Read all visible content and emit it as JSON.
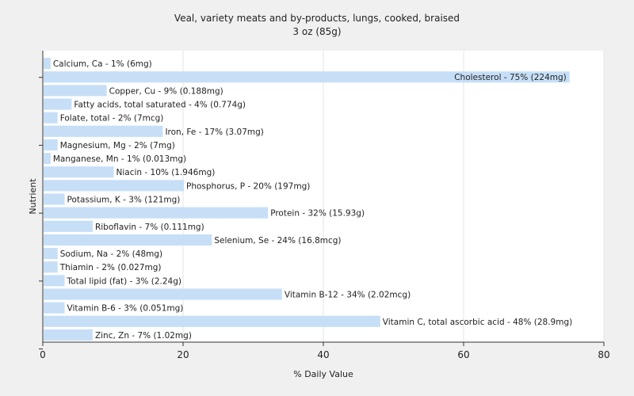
{
  "chart_data": {
    "type": "bar",
    "orientation": "horizontal",
    "title": "Veal, variety meats and by-products, lungs, cooked, braised",
    "subtitle": "3 oz (85g)",
    "xlabel": "% Daily Value",
    "ylabel": "Nutrient",
    "xlim": [
      0,
      80
    ],
    "xticks": [
      "0",
      "20",
      "40",
      "60",
      "80"
    ],
    "grid": true,
    "bar_color": "#c6dff7",
    "categories": [
      "Calcium, Ca",
      "Cholesterol",
      "Copper, Cu",
      "Fatty acids, total saturated",
      "Folate, total",
      "Iron, Fe",
      "Magnesium, Mg",
      "Manganese, Mn",
      "Niacin",
      "Phosphorus, P",
      "Potassium, K",
      "Protein",
      "Riboflavin",
      "Selenium, Se",
      "Sodium, Na",
      "Thiamin",
      "Total lipid (fat)",
      "Vitamin B-12",
      "Vitamin B-6",
      "Vitamin C, total ascorbic acid",
      "Zinc, Zn"
    ],
    "values": [
      1,
      75,
      9,
      4,
      2,
      17,
      2,
      1,
      10,
      20,
      3,
      32,
      7,
      24,
      2,
      2,
      3,
      34,
      3,
      48,
      7
    ],
    "labels": [
      "Calcium, Ca - 1% (6mg)",
      "Cholesterol - 75% (224mg)",
      "Copper, Cu - 9% (0.188mg)",
      "Fatty acids, total saturated - 4% (0.774g)",
      "Folate, total - 2% (7mcg)",
      "Iron, Fe - 17% (3.07mg)",
      "Magnesium, Mg - 2% (7mg)",
      "Manganese, Mn - 1% (0.013mg)",
      "Niacin - 10% (1.946mg)",
      "Phosphorus, P - 20% (197mg)",
      "Potassium, K - 3% (121mg)",
      "Protein - 32% (15.93g)",
      "Riboflavin - 7% (0.111mg)",
      "Selenium, Se - 24% (16.8mcg)",
      "Sodium, Na - 2% (48mg)",
      "Thiamin - 2% (0.027mg)",
      "Total lipid (fat) - 3% (2.24g)",
      "Vitamin B-12 - 34% (2.02mcg)",
      "Vitamin B-6 - 3% (0.051mg)",
      "Vitamin C, total ascorbic acid - 48% (28.9mg)",
      "Zinc, Zn - 7% (1.02mg)"
    ]
  }
}
